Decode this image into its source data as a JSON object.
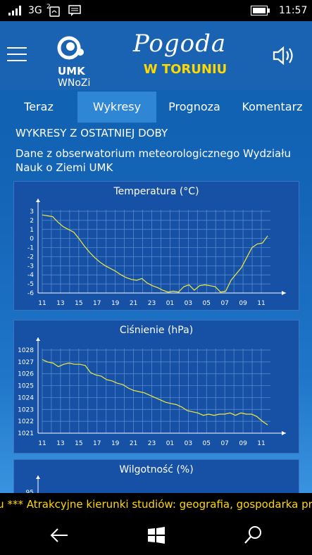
{
  "status": {
    "signal": "3G",
    "sim": "2",
    "time": "11:57"
  },
  "header": {
    "logo_line1": "UMK",
    "logo_line2": "WNoZi",
    "title": "Pogoda",
    "subtitle": "W TORUNIU",
    "menu_icon": "hamburger-icon",
    "sound_icon": "speaker-icon"
  },
  "tabs": [
    {
      "label": "Teraz",
      "active": false
    },
    {
      "label": "Wykresy",
      "active": true
    },
    {
      "label": "Prognoza",
      "active": false
    },
    {
      "label": "Komentarz",
      "active": false
    }
  ],
  "main": {
    "section_title": "WYKRESY Z OSTATNIEJ DOBY",
    "description": "Dane z obserwatorium meteorologicznego Wydziału Nauk o Ziemi UMK"
  },
  "chart_data": [
    {
      "type": "line",
      "title": "Temperatura (°C)",
      "x_ticks": [
        "11",
        "13",
        "15",
        "17",
        "19",
        "21",
        "23",
        "01",
        "03",
        "05",
        "07",
        "09",
        "11"
      ],
      "y_ticks": [
        3,
        2,
        1,
        0,
        -1,
        -2,
        -3,
        -4,
        -5,
        -6
      ],
      "ylim": [
        -6,
        3
      ],
      "grid": true,
      "series": [
        {
          "color": "#f2ea3a",
          "values": [
            2.6,
            2.5,
            2.4,
            1.8,
            1.3,
            1.0,
            0.7,
            0.0,
            -0.8,
            -1.5,
            -2.1,
            -2.6,
            -3.0,
            -3.3,
            -3.6,
            -4.0,
            -4.3,
            -4.5,
            -4.6,
            -4.4,
            -4.9,
            -5.2,
            -5.4,
            -5.7,
            -5.9,
            -5.8,
            -5.9,
            -5.3,
            -5.1,
            -5.7,
            -5.2,
            -5.1,
            -5.2,
            -5.3,
            -5.9,
            -5.8,
            -4.6,
            -3.9,
            -3.2,
            -2.1,
            -1.0,
            -0.6,
            -0.5,
            0.3
          ]
        }
      ]
    },
    {
      "type": "line",
      "title": "Ciśnienie (hPa)",
      "x_ticks": [
        "11",
        "13",
        "15",
        "17",
        "19",
        "21",
        "23",
        "01",
        "03",
        "05",
        "07",
        "09",
        "11"
      ],
      "y_ticks": [
        1028,
        1027,
        1026,
        1025,
        1024,
        1023,
        1022,
        1021
      ],
      "ylim": [
        1021,
        1028
      ],
      "grid": true,
      "series": [
        {
          "color": "#f2ea3a",
          "values": [
            1027.2,
            1027.0,
            1026.9,
            1026.6,
            1026.8,
            1026.9,
            1026.8,
            1026.8,
            1026.7,
            1026.1,
            1025.9,
            1025.8,
            1025.5,
            1025.4,
            1025.2,
            1025.1,
            1024.8,
            1024.6,
            1024.5,
            1024.4,
            1024.2,
            1024.0,
            1023.8,
            1023.6,
            1023.5,
            1023.4,
            1023.2,
            1022.9,
            1022.8,
            1022.7,
            1022.5,
            1022.6,
            1022.5,
            1022.6,
            1022.6,
            1022.7,
            1022.5,
            1022.7,
            1022.6,
            1022.6,
            1022.4,
            1022.0,
            1021.7
          ]
        }
      ]
    },
    {
      "type": "line",
      "title": "Wilgotność (%)",
      "y_ticks": [
        95
      ],
      "grid": true
    }
  ],
  "ticker": {
    "text": "iu *** Atrakcyjne kierunki studiów: geografia, gospodarka prze"
  },
  "navbar": {
    "back_icon": "back-arrow-icon",
    "home_icon": "windows-icon",
    "search_icon": "search-icon"
  }
}
